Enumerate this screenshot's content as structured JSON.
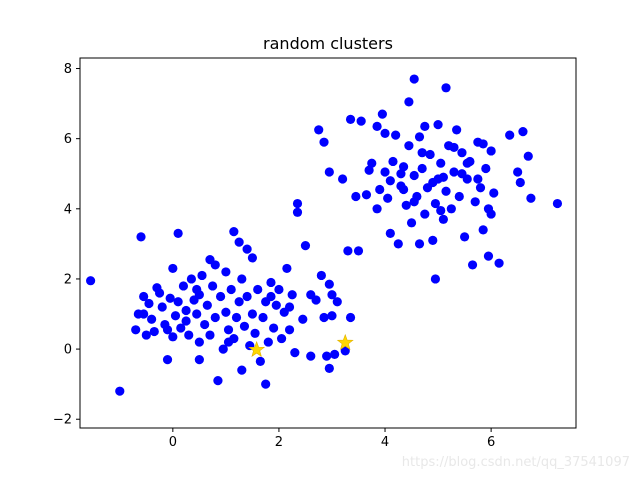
{
  "chart_data": {
    "type": "scatter",
    "title": "random clusters",
    "xlabel": "",
    "ylabel": "",
    "xlim": [
      -1.75,
      7.6
    ],
    "ylim": [
      -2.25,
      8.3
    ],
    "xticks": [
      0,
      2,
      4,
      6
    ],
    "yticks": [
      -2,
      0,
      2,
      4,
      6,
      8
    ],
    "grid": false,
    "series": [
      {
        "color": "#0000ff",
        "marker": "circle",
        "points": [
          [
            -1.55,
            1.95
          ],
          [
            -1.0,
            -1.2
          ],
          [
            -0.7,
            0.55
          ],
          [
            -0.65,
            1.0
          ],
          [
            -0.6,
            3.2
          ],
          [
            -0.55,
            1.5
          ],
          [
            -0.5,
            0.4
          ],
          [
            -0.45,
            1.3
          ],
          [
            -0.4,
            0.85
          ],
          [
            -0.35,
            0.5
          ],
          [
            -0.3,
            1.75
          ],
          [
            -0.25,
            1.6
          ],
          [
            -0.2,
            1.2
          ],
          [
            -0.15,
            0.7
          ],
          [
            -0.1,
            -0.3
          ],
          [
            -0.05,
            1.45
          ],
          [
            0.0,
            0.35
          ],
          [
            0.05,
            0.95
          ],
          [
            0.1,
            3.3
          ],
          [
            0.1,
            1.35
          ],
          [
            0.15,
            0.6
          ],
          [
            0.2,
            1.8
          ],
          [
            0.25,
            1.1
          ],
          [
            0.3,
            0.4
          ],
          [
            0.35,
            2.0
          ],
          [
            0.4,
            1.4
          ],
          [
            0.45,
            1.0
          ],
          [
            0.5,
            0.2
          ],
          [
            0.5,
            1.55
          ],
          [
            0.55,
            2.1
          ],
          [
            0.6,
            0.7
          ],
          [
            0.65,
            1.25
          ],
          [
            0.7,
            0.4
          ],
          [
            0.75,
            1.8
          ],
          [
            0.8,
            0.9
          ],
          [
            0.8,
            2.4
          ],
          [
            0.85,
            -0.9
          ],
          [
            0.9,
            1.5
          ],
          [
            0.95,
            0.0
          ],
          [
            1.0,
            1.05
          ],
          [
            1.0,
            2.2
          ],
          [
            1.05,
            0.55
          ],
          [
            1.1,
            1.7
          ],
          [
            1.15,
            0.3
          ],
          [
            1.15,
            3.35
          ],
          [
            1.2,
            0.9
          ],
          [
            1.25,
            1.35
          ],
          [
            1.3,
            -0.6
          ],
          [
            1.3,
            2.0
          ],
          [
            1.35,
            0.65
          ],
          [
            1.4,
            1.5
          ],
          [
            1.45,
            0.1
          ],
          [
            1.5,
            1.0
          ],
          [
            1.5,
            2.6
          ],
          [
            1.55,
            0.45
          ],
          [
            1.6,
            1.7
          ],
          [
            1.65,
            -0.35
          ],
          [
            1.7,
            0.9
          ],
          [
            1.75,
            1.35
          ],
          [
            1.75,
            -1.0
          ],
          [
            1.8,
            0.2
          ],
          [
            1.85,
            1.9
          ],
          [
            1.9,
            0.6
          ],
          [
            1.95,
            1.25
          ],
          [
            2.0,
            1.7
          ],
          [
            2.05,
            0.3
          ],
          [
            2.1,
            1.05
          ],
          [
            2.15,
            2.3
          ],
          [
            2.2,
            0.55
          ],
          [
            2.25,
            1.55
          ],
          [
            2.3,
            -0.1
          ],
          [
            2.35,
            3.9
          ],
          [
            2.45,
            0.85
          ],
          [
            2.5,
            2.95
          ],
          [
            2.6,
            -0.2
          ],
          [
            2.7,
            1.4
          ],
          [
            2.8,
            2.1
          ],
          [
            2.85,
            0.9
          ],
          [
            2.9,
            -0.2
          ],
          [
            2.95,
            1.85
          ],
          [
            3.0,
            0.95
          ],
          [
            3.1,
            1.35
          ],
          [
            3.25,
            -0.05
          ],
          [
            3.35,
            0.9
          ],
          [
            3.0,
            1.55
          ],
          [
            3.05,
            -0.15
          ],
          [
            2.95,
            -0.55
          ],
          [
            1.25,
            3.05
          ],
          [
            0.7,
            2.55
          ],
          [
            0.5,
            -0.3
          ],
          [
            -0.1,
            0.55
          ],
          [
            0.0,
            2.3
          ],
          [
            1.4,
            2.85
          ],
          [
            2.2,
            1.2
          ],
          [
            1.85,
            1.5
          ],
          [
            0.45,
            1.7
          ],
          [
            -0.55,
            1.0
          ],
          [
            0.25,
            0.8
          ],
          [
            1.05,
            0.2
          ],
          [
            2.6,
            1.55
          ],
          [
            2.35,
            4.15
          ],
          [
            3.75,
            5.3
          ],
          [
            3.85,
            4.0
          ],
          [
            3.9,
            4.55
          ],
          [
            3.95,
            6.7
          ],
          [
            4.0,
            5.05
          ],
          [
            4.05,
            4.3
          ],
          [
            4.1,
            4.8
          ],
          [
            4.15,
            5.35
          ],
          [
            4.2,
            6.1
          ],
          [
            4.25,
            3.0
          ],
          [
            4.3,
            4.65
          ],
          [
            4.35,
            5.2
          ],
          [
            4.4,
            4.1
          ],
          [
            4.45,
            7.05
          ],
          [
            4.45,
            5.8
          ],
          [
            4.5,
            3.6
          ],
          [
            4.55,
            4.95
          ],
          [
            4.6,
            4.35
          ],
          [
            4.65,
            6.05
          ],
          [
            4.7,
            5.15
          ],
          [
            4.75,
            3.85
          ],
          [
            4.8,
            4.6
          ],
          [
            4.85,
            5.55
          ],
          [
            4.9,
            3.1
          ],
          [
            4.95,
            4.15
          ],
          [
            5.0,
            6.4
          ],
          [
            5.0,
            4.85
          ],
          [
            5.05,
            5.3
          ],
          [
            5.1,
            3.7
          ],
          [
            5.15,
            4.5
          ],
          [
            5.2,
            5.8
          ],
          [
            5.25,
            4.0
          ],
          [
            5.3,
            5.05
          ],
          [
            5.35,
            6.25
          ],
          [
            5.4,
            4.35
          ],
          [
            5.45,
            5.6
          ],
          [
            5.5,
            3.2
          ],
          [
            5.55,
            4.85
          ],
          [
            5.6,
            5.35
          ],
          [
            5.65,
            2.4
          ],
          [
            5.7,
            4.2
          ],
          [
            5.75,
            5.9
          ],
          [
            5.8,
            4.6
          ],
          [
            5.85,
            3.4
          ],
          [
            5.9,
            5.15
          ],
          [
            5.95,
            4.0
          ],
          [
            6.0,
            5.65
          ],
          [
            6.05,
            4.45
          ],
          [
            6.15,
            2.45
          ],
          [
            6.35,
            6.1
          ],
          [
            6.5,
            5.05
          ],
          [
            6.55,
            4.75
          ],
          [
            6.6,
            6.2
          ],
          [
            6.7,
            5.5
          ],
          [
            6.75,
            4.3
          ],
          [
            7.25,
            4.15
          ],
          [
            3.35,
            6.55
          ],
          [
            3.55,
            6.5
          ],
          [
            3.65,
            4.4
          ],
          [
            3.45,
            4.35
          ],
          [
            3.2,
            4.85
          ],
          [
            2.95,
            5.05
          ],
          [
            2.75,
            6.25
          ],
          [
            2.85,
            5.9
          ],
          [
            4.55,
            7.7
          ],
          [
            5.15,
            7.45
          ],
          [
            3.5,
            2.8
          ],
          [
            3.3,
            2.8
          ],
          [
            4.95,
            2.0
          ],
          [
            4.65,
            3.0
          ],
          [
            5.95,
            2.65
          ],
          [
            6.0,
            3.85
          ],
          [
            4.1,
            3.3
          ],
          [
            4.3,
            5.0
          ],
          [
            4.7,
            5.6
          ],
          [
            5.1,
            4.9
          ],
          [
            5.45,
            5.0
          ],
          [
            5.75,
            4.85
          ],
          [
            5.85,
            5.85
          ],
          [
            4.9,
            4.75
          ],
          [
            4.55,
            4.2
          ],
          [
            3.7,
            5.1
          ],
          [
            3.85,
            6.35
          ],
          [
            4.0,
            6.15
          ],
          [
            4.75,
            6.35
          ],
          [
            5.3,
            5.75
          ],
          [
            5.55,
            5.3
          ],
          [
            5.05,
            3.95
          ],
          [
            4.35,
            4.55
          ]
        ]
      },
      {
        "color": "#ffd700",
        "marker": "star",
        "points": [
          [
            1.58,
            -0.02
          ],
          [
            3.25,
            0.18
          ]
        ]
      }
    ]
  },
  "watermark": "https://blog.csdn.net/qq_37541097"
}
